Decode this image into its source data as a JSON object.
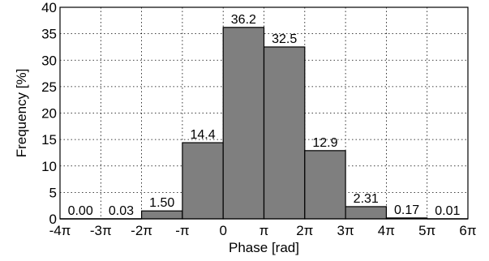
{
  "chart_data": {
    "type": "bar",
    "xlabel": "Phase [rad]",
    "ylabel": "Frequency [%]",
    "ylim": [
      0,
      40
    ],
    "yticks": [
      "0",
      "5",
      "10",
      "15",
      "20",
      "25",
      "30",
      "35",
      "40"
    ],
    "xlim": [
      -4,
      6
    ],
    "xticks": [
      "-4π",
      "-3π",
      "-2π",
      "-π",
      "0",
      "π",
      "2π",
      "3π",
      "4π",
      "5π",
      "6π"
    ],
    "bin_edges_in_pi": [
      -4,
      -3,
      -2,
      -1,
      0,
      1,
      2,
      3,
      4,
      5,
      6
    ],
    "values": [
      0.0,
      0.03,
      1.5,
      14.4,
      36.2,
      32.5,
      12.9,
      2.31,
      0.17,
      0.01
    ],
    "value_labels": [
      "0.00",
      "0.03",
      "1.50",
      "14.4",
      "36.2",
      "32.5",
      "12.9",
      "2.31",
      "0.17",
      "0.01"
    ],
    "grid": true,
    "bar_color": "#7f7f7f"
  }
}
